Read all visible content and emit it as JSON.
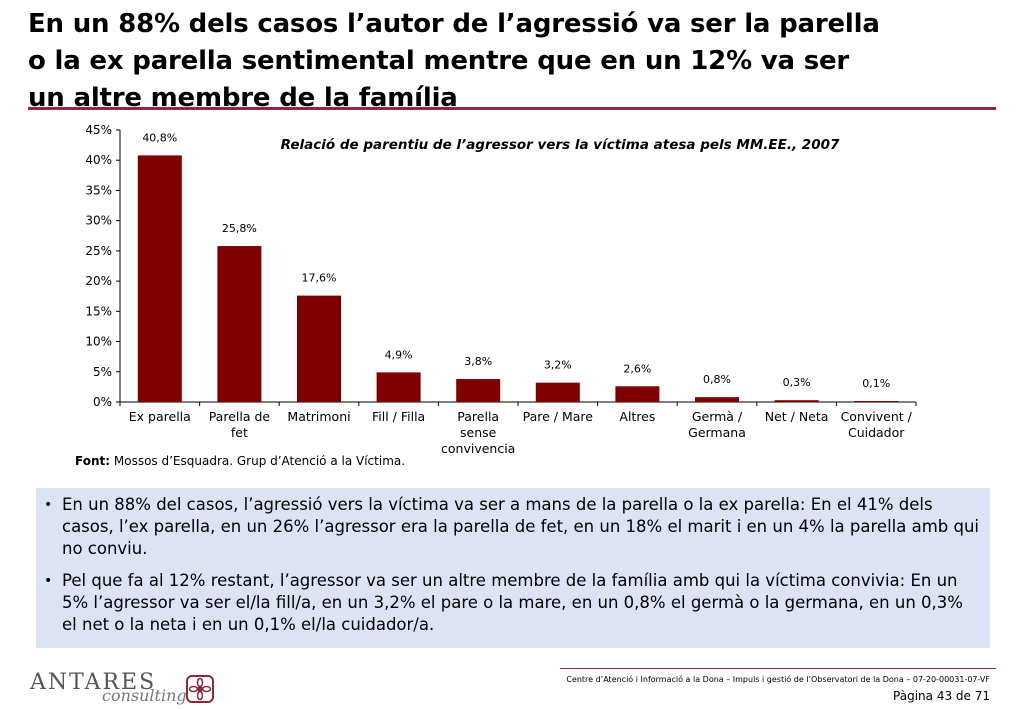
{
  "header": {
    "title": "En un 88% dels casos l’autor de l’agressió va ser la parella\no la ex parella sentimental mentre que en un 12% va ser\nun altre membre de la família"
  },
  "chart_data": {
    "type": "bar",
    "title": "Relació de parentiu de l’agressor vers la víctima atesa pels MM.EE., 2007",
    "categories": [
      [
        "Ex parella"
      ],
      [
        "Parella de",
        "fet"
      ],
      [
        "Matrimoni"
      ],
      [
        "Fill / Filla"
      ],
      [
        "Parella",
        "sense",
        "convivencia"
      ],
      [
        "Pare / Mare"
      ],
      [
        "Altres"
      ],
      [
        "Germà /",
        "Germana"
      ],
      [
        "Net / Neta"
      ],
      [
        "Convivent /",
        "Cuidador"
      ]
    ],
    "values": [
      40.8,
      25.8,
      17.6,
      4.9,
      3.8,
      3.2,
      2.6,
      0.8,
      0.3,
      0.1
    ],
    "value_labels": [
      "40,8%",
      "25,8%",
      "17,6%",
      "4,9%",
      "3,8%",
      "3,2%",
      "2,6%",
      "0,8%",
      "0,3%",
      "0,1%"
    ],
    "yticks": [
      "0%",
      "5%",
      "10%",
      "15%",
      "20%",
      "25%",
      "30%",
      "35%",
      "40%",
      "45%"
    ],
    "ylim": [
      0,
      45
    ],
    "xlabel": "",
    "ylabel": "",
    "bar_color": "#800000",
    "grid": false
  },
  "source": {
    "label": "Font:",
    "text": "Mossos d’Esquadra. Grup d’Atenció a la Víctima."
  },
  "bullets": [
    "En un 88% del casos, l’agressió vers la víctima va ser a mans de la parella o la ex parella: En el 41% dels casos, l’ex parella, en un 26% l’agressor era la parella de fet, en un 18% el marit i en un 4% la parella amb qui no conviu.",
    "Pel que fa al 12% restant, l’agressor va ser un altre membre de la família amb qui la víctima convivia: En un 5% l’agressor va ser el/la fill/a, en un 3,2% el pare o la mare, en un 0,8% el germà o la germana, en un 0,3% el net o la neta i en un 0,1% el/la cuidador/a."
  ],
  "footer": {
    "logo_word": "ANTARES",
    "logo_sub": "consulting",
    "doc_ref": "Centre d’Atenció i Informació a la Dona – Impuls i gestió de l’Observatori de la Dona – 07-20-00031-07-VF",
    "page": "Pàgina 43 de 71"
  },
  "colors": {
    "accent": "#8b2a3c",
    "bar": "#800000",
    "panel": "#dde3f5"
  }
}
